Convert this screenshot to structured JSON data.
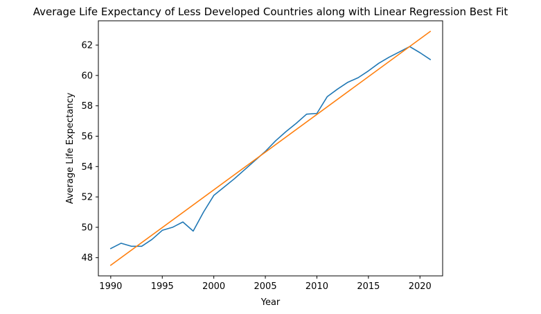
{
  "chart_data": {
    "type": "line",
    "title": "Average Life Expectancy of Less Developed Countries along with Linear Regression Best Fit",
    "xlabel": "Year",
    "ylabel": "Average Life Expectancy",
    "xlim": [
      1988.8,
      2022.2
    ],
    "ylim": [
      46.8,
      63.6
    ],
    "xticks": [
      1990,
      1995,
      2000,
      2005,
      2010,
      2015,
      2020
    ],
    "yticks": [
      48,
      50,
      52,
      54,
      56,
      58,
      60,
      62
    ],
    "grid": false,
    "series": [
      {
        "color": "#1f77b4",
        "x": [
          1990,
          1991,
          1992,
          1993,
          1994,
          1995,
          1996,
          1997,
          1998,
          1999,
          2000,
          2001,
          2002,
          2003,
          2004,
          2005,
          2006,
          2007,
          2008,
          2009,
          2010,
          2011,
          2012,
          2013,
          2014,
          2015,
          2016,
          2017,
          2018,
          2019,
          2020,
          2021
        ],
        "y": [
          48.6,
          48.95,
          48.75,
          48.75,
          49.2,
          49.8,
          50.0,
          50.35,
          49.75,
          51.0,
          52.1,
          52.65,
          53.2,
          53.8,
          54.4,
          55.0,
          55.7,
          56.3,
          56.85,
          57.45,
          57.5,
          58.6,
          59.1,
          59.55,
          59.85,
          60.3,
          60.8,
          61.2,
          61.55,
          61.9,
          61.5,
          61.05
        ]
      },
      {
        "color": "#ff7f0e",
        "x": [
          1990,
          2021
        ],
        "y": [
          47.5,
          62.9
        ]
      }
    ]
  }
}
